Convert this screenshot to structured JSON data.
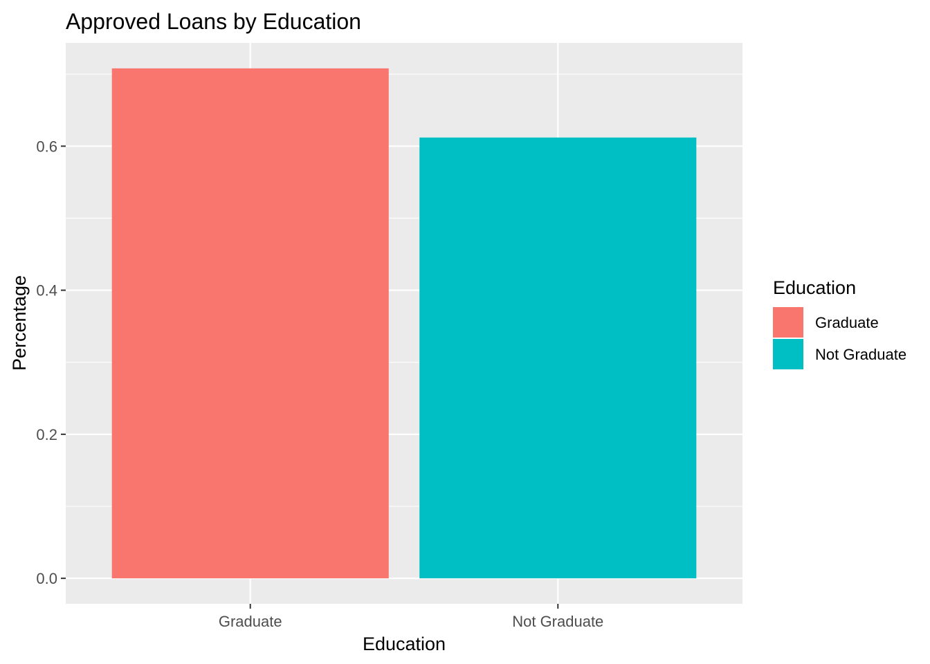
{
  "chart_data": {
    "type": "bar",
    "title": "Approved Loans by Education",
    "xlabel": "Education",
    "ylabel": "Percentage",
    "categories": [
      "Graduate",
      "Not Graduate"
    ],
    "values": [
      0.708,
      0.612
    ],
    "colors": [
      "#f8766d",
      "#00bfc4"
    ],
    "ylim": [
      -0.0354,
      0.7434
    ],
    "yticks": [
      {
        "value": 0.0,
        "label": "0.0"
      },
      {
        "value": 0.2,
        "label": "0.2"
      },
      {
        "value": 0.4,
        "label": "0.4"
      },
      {
        "value": 0.6,
        "label": "0.6"
      }
    ],
    "grid": true,
    "panel_background": "#ebebeb",
    "grid_color": "#ffffff",
    "legend": {
      "position": "right",
      "title": "Education",
      "entries": [
        {
          "label": "Graduate",
          "color": "#f8766d"
        },
        {
          "label": "Not Graduate",
          "color": "#00bfc4"
        }
      ]
    }
  }
}
